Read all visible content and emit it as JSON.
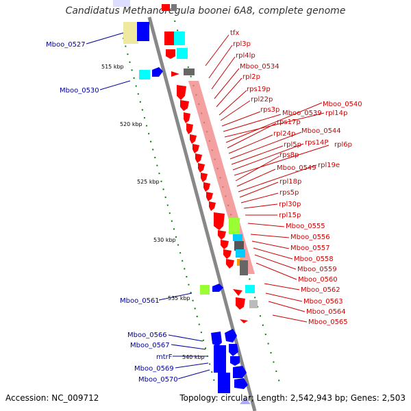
{
  "title": "Candidatus Methanoregula boonei 6A8, complete genome",
  "footer": {
    "accession": "Accession: NC_009712",
    "summary": "Topology: circular; Length: 2,542,943 bp; Genes: 2,503"
  },
  "colors": {
    "red": "#ff0000",
    "blue": "#0000ff",
    "label_red": "#cc0000",
    "label_blue": "#000099",
    "backbone": "#888888",
    "ruler_dots": "#008000"
  },
  "kbp_ticks": [
    "515 kbp",
    "520 kbp",
    "525 kbp",
    "530 kbp",
    "535 kbp",
    "540 kbp"
  ],
  "left_labels": [
    "Mboo_0527",
    "Mboo_0530",
    "Mboo_0561",
    "Mboo_0566",
    "Mboo_0567",
    "mtrF",
    "Mboo_0569",
    "Mboo_0570"
  ],
  "right_labels": [
    "tfx",
    "rpl3p",
    "rpl4lp",
    "Mboo_0534",
    "rpl2p",
    "rps19p",
    "rpl22p",
    "rps3p",
    "Mboo_0539",
    "rpl14p",
    "Mboo_0540",
    "rps17p",
    "rpl24p",
    "Mboo_0544",
    "rpl5p",
    "rps14P",
    "rpl6p",
    "rps8p",
    "Mboo_0549",
    "rpl19e",
    "rpl18p",
    "rps5p",
    "rpl30p",
    "rpl15p",
    "Mboo_0555",
    "Mboo_0556",
    "Mboo_0557",
    "Mboo_0558",
    "Mboo_0559",
    "Mboo_0560",
    "Mboo_0562",
    "Mboo_0563",
    "Mboo_0564",
    "Mboo_0565"
  ]
}
